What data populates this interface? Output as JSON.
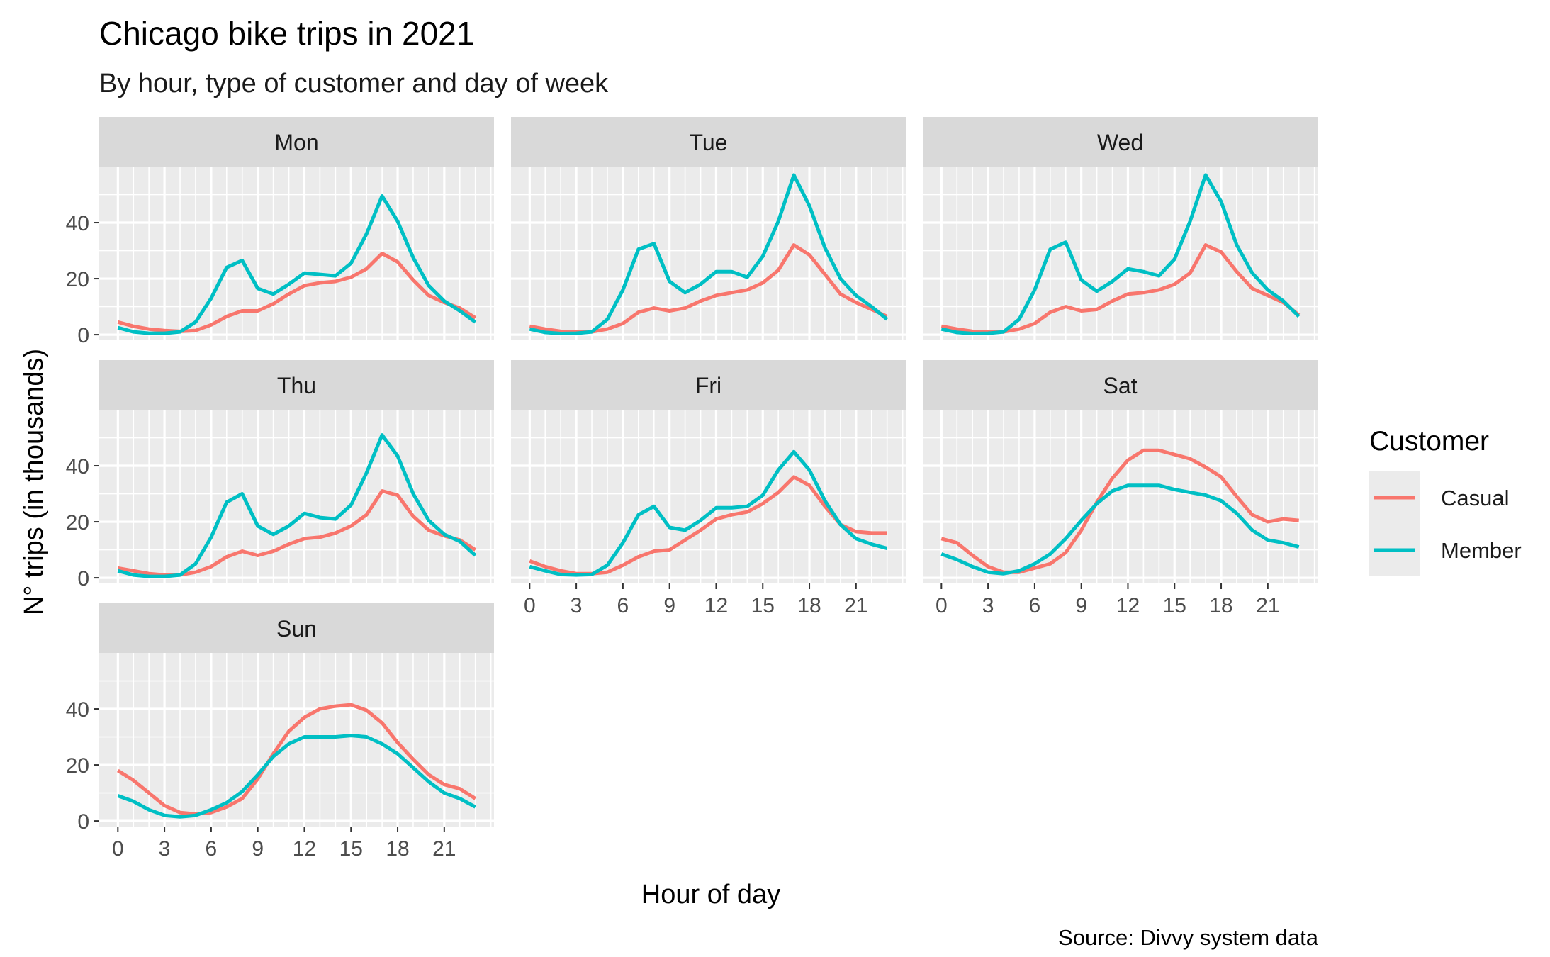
{
  "chart_data": {
    "type": "line",
    "title": "Chicago bike trips in 2021",
    "subtitle": "By hour, type of customer and day of week",
    "xlabel": "Hour of day",
    "ylabel": "N° trips (in thousands)",
    "caption": "Source: Divvy system data",
    "legend_title": "Customer",
    "legend_placement": "right",
    "grid": true,
    "xlim": [
      -1.2,
      24.2
    ],
    "ylim": [
      -2,
      60
    ],
    "x_ticks": [
      "0",
      "3",
      "6",
      "9",
      "12",
      "15",
      "18",
      "21"
    ],
    "y_ticks": [
      "0",
      "20",
      "40"
    ],
    "x": [
      0,
      1,
      2,
      3,
      4,
      5,
      6,
      7,
      8,
      9,
      10,
      11,
      12,
      13,
      14,
      15,
      16,
      17,
      18,
      19,
      20,
      21,
      22,
      23
    ],
    "series_colors": {
      "Casual": "#F8766D",
      "Member": "#00BFC4"
    },
    "facets": [
      {
        "label": "Mon",
        "series": [
          {
            "name": "Casual",
            "values": [
              4.5,
              3,
              2,
              1.5,
              1.2,
              1.5,
              3.5,
              6.5,
              8.5,
              8.5,
              11,
              14.5,
              17.5,
              18.5,
              19,
              20.5,
              23.5,
              29,
              26,
              19.5,
              14,
              11.5,
              9.5,
              6
            ]
          },
          {
            "name": "Member",
            "values": [
              2.5,
              1,
              0.5,
              0.5,
              1,
              4.5,
              13,
              24,
              26.5,
              16.5,
              14.5,
              18,
              22,
              21.5,
              21,
              25.5,
              36,
              49.5,
              40.5,
              27.5,
              17.5,
              12,
              8.5,
              4.5
            ]
          }
        ]
      },
      {
        "label": "Tue",
        "series": [
          {
            "name": "Casual",
            "values": [
              3,
              2,
              1.2,
              1,
              1,
              2,
              4,
              8,
              9.5,
              8.5,
              9.5,
              12,
              14,
              15,
              16,
              18.5,
              23,
              32,
              28.5,
              21.5,
              14.5,
              11.5,
              9,
              6.5
            ]
          },
          {
            "name": "Member",
            "values": [
              2,
              0.8,
              0.4,
              0.5,
              1,
              5.5,
              16,
              30.5,
              32.5,
              19,
              15,
              18,
              22.5,
              22.5,
              20.5,
              28,
              40.5,
              57,
              46,
              31,
              20,
              14,
              10,
              5.5
            ]
          }
        ]
      },
      {
        "label": "Wed",
        "series": [
          {
            "name": "Casual",
            "values": [
              3,
              2,
              1.2,
              1,
              1,
              2,
              4,
              8,
              10,
              8.5,
              9,
              12,
              14.5,
              15,
              16,
              18,
              22,
              32,
              29.5,
              22.5,
              16.5,
              14,
              11.5,
              7
            ]
          },
          {
            "name": "Member",
            "values": [
              2,
              0.8,
              0.4,
              0.5,
              1,
              5.5,
              16,
              30.5,
              33,
              19.5,
              15.5,
              19,
              23.5,
              22.5,
              21,
              27,
              40.5,
              57,
              47.5,
              32,
              22,
              16,
              12,
              6.5
            ]
          }
        ]
      },
      {
        "label": "Thu",
        "series": [
          {
            "name": "Casual",
            "values": [
              3.5,
              2.5,
              1.5,
              1,
              1,
              2,
              4,
              7.5,
              9.5,
              8,
              9.5,
              12,
              14,
              14.5,
              16,
              18.5,
              22.5,
              31,
              29.5,
              22,
              17,
              15,
              13.5,
              10
            ]
          },
          {
            "name": "Member",
            "values": [
              2.5,
              1,
              0.5,
              0.5,
              1,
              5,
              14.5,
              27,
              30,
              18.5,
              15.5,
              18.5,
              23,
              21.5,
              21,
              26,
              37.5,
              51,
              43.5,
              30,
              20.5,
              15.5,
              13,
              8
            ]
          }
        ]
      },
      {
        "label": "Fri",
        "series": [
          {
            "name": "Casual",
            "values": [
              6,
              4,
              2.5,
              1.5,
              1.5,
              2,
              4.5,
              7.5,
              9.5,
              10,
              13.5,
              17,
              21,
              22.5,
              23.5,
              26.5,
              30.5,
              36,
              33,
              25.5,
              19,
              16.5,
              16,
              16
            ]
          },
          {
            "name": "Member",
            "values": [
              4,
              2.5,
              1.2,
              1,
              1.2,
              4.5,
              12.5,
              22.5,
              25.5,
              18,
              17,
              20.5,
              25,
              25,
              25.5,
              29.5,
              38.5,
              45,
              38.5,
              27.5,
              19,
              14,
              12,
              10.5
            ]
          }
        ]
      },
      {
        "label": "Sat",
        "series": [
          {
            "name": "Casual",
            "values": [
              14,
              12.5,
              8,
              4,
              2,
              2,
              3.5,
              5,
              9,
              17,
              27,
              35.5,
              42,
              45.5,
              45.5,
              44,
              42.5,
              39.5,
              36,
              29,
              22.5,
              20,
              21,
              20.5
            ]
          },
          {
            "name": "Member",
            "values": [
              8.5,
              6.5,
              4,
              2,
              1.5,
              2.5,
              5,
              8.5,
              14,
              20.5,
              26.5,
              31,
              33,
              33,
              33,
              31.5,
              30.5,
              29.5,
              27.5,
              23,
              17,
              13.5,
              12.5,
              11
            ]
          }
        ]
      },
      {
        "label": "Sun",
        "series": [
          {
            "name": "Casual",
            "values": [
              18,
              14.5,
              10,
              5.5,
              3,
              2.5,
              3,
              5,
              8,
              15,
              24,
              32,
              37,
              40,
              41,
              41.5,
              39.5,
              35,
              28,
              22,
              16.5,
              13,
              11.5,
              8
            ]
          },
          {
            "name": "Member",
            "values": [
              9,
              7,
              4,
              2,
              1.5,
              2,
              4,
              6.5,
              10.5,
              16.5,
              23,
              27.5,
              30,
              30,
              30,
              30.5,
              30,
              27.5,
              24,
              19,
              14,
              10,
              8,
              5
            ]
          }
        ]
      }
    ]
  }
}
